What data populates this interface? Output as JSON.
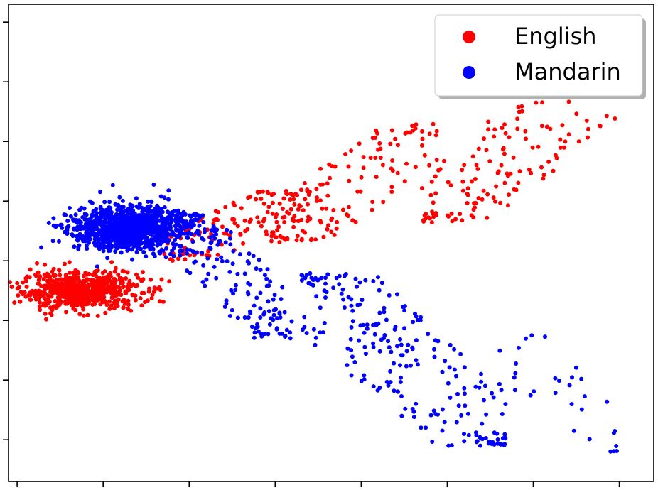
{
  "chart_data": {
    "type": "scatter",
    "title": "",
    "xlabel": "",
    "ylabel": "",
    "xlim": [
      -10,
      65
    ],
    "ylim": [
      -40,
      40
    ],
    "xticks": [
      -9,
      1,
      11,
      21,
      31,
      41,
      51,
      61
    ],
    "yticks": [
      -33,
      -23,
      -13,
      -3,
      7,
      17,
      27,
      37
    ],
    "tick_labels_visible": false,
    "grid": false,
    "legend": {
      "placement": "top-right"
    },
    "series": [
      {
        "name": "English",
        "color": "#ff0000",
        "clusters": [
          {
            "cx": -1.5,
            "cy": -8,
            "sx": 3.5,
            "sy": 1.6,
            "n": 650,
            "kind": "gauss"
          },
          {
            "cx": 15,
            "cy": 3,
            "x0": 8,
            "x1": 25,
            "y0": -3,
            "y1": 9,
            "n": 130,
            "kind": "band"
          },
          {
            "cx": 30,
            "cy": 8,
            "x0": 20,
            "x1": 40,
            "y0": 0,
            "y1": 20,
            "n": 130,
            "kind": "band"
          },
          {
            "cx": 47,
            "cy": 18,
            "x0": 38,
            "x1": 61,
            "y0": 3,
            "y1": 30,
            "n": 160,
            "kind": "band"
          }
        ]
      },
      {
        "name": "Mandarin",
        "color": "#0000ff",
        "clusters": [
          {
            "cx": 4,
            "cy": 2.5,
            "sx": 3.3,
            "sy": 1.9,
            "n": 1100,
            "kind": "gauss"
          },
          {
            "cx": 15,
            "cy": -4,
            "x0": 9,
            "x1": 23,
            "y0": -16,
            "y1": 5,
            "n": 160,
            "kind": "band"
          },
          {
            "cx": 36,
            "cy": -20,
            "x0": 24,
            "x1": 48,
            "y0": -34,
            "y1": -5,
            "n": 230,
            "kind": "band"
          },
          {
            "cx": 53,
            "cy": -27,
            "x0": 47,
            "x1": 61,
            "y0": -35,
            "y1": -15,
            "n": 30,
            "kind": "band"
          }
        ]
      }
    ]
  }
}
